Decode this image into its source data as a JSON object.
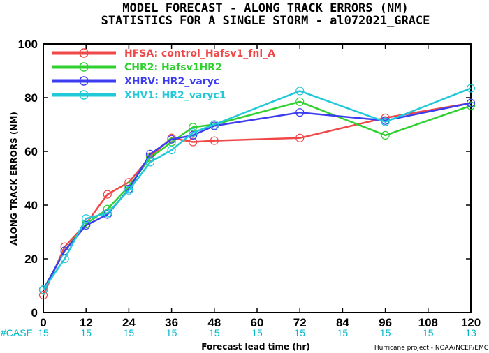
{
  "chart_data": {
    "type": "line",
    "title_line1": "MODEL FORECAST - ALONG TRACK ERRORS (NM)",
    "title_line2": "STATISTICS FOR A SINGLE STORM - al072021_GRACE",
    "xlabel": "Forecast lead time (hr)",
    "ylabel": "ALONG TRACK ERRORS (NM)",
    "xlim": [
      0,
      120
    ],
    "ylim": [
      0,
      100
    ],
    "xticks": [
      0,
      12,
      24,
      36,
      48,
      60,
      72,
      84,
      96,
      108,
      120
    ],
    "yticks": [
      0,
      20,
      40,
      60,
      80,
      100
    ],
    "legend_position": "top-left",
    "series": [
      {
        "name": "HFSA: control_Hafsv1_fnl_A",
        "color": "#f04848",
        "x": [
          0,
          6,
          12,
          18,
          24,
          30,
          36,
          42,
          48,
          72,
          96,
          120
        ],
        "y": [
          6.5,
          24.5,
          33,
          44,
          48.5,
          58,
          65,
          63.5,
          64,
          65,
          72.5,
          78
        ]
      },
      {
        "name": "CHR2: Hafsv1HR2",
        "color": "#30d030",
        "x": [
          0,
          6,
          12,
          18,
          24,
          30,
          36,
          42,
          48,
          72,
          96,
          120
        ],
        "y": [
          8.5,
          23,
          33,
          38.5,
          47,
          57.5,
          63.5,
          69,
          70,
          78.5,
          66,
          77
        ]
      },
      {
        "name": "XHRV: HR2_varyc",
        "color": "#3c3cf0",
        "x": [
          0,
          6,
          12,
          18,
          24,
          30,
          36,
          42,
          48,
          72,
          96,
          120
        ],
        "y": [
          8.5,
          23,
          32.5,
          36.5,
          46,
          59,
          64.5,
          66,
          69.5,
          74.5,
          71.5,
          78
        ]
      },
      {
        "name": "XHV1: HR2_varyc1",
        "color": "#20c8d8",
        "x": [
          0,
          6,
          12,
          18,
          24,
          30,
          36,
          42,
          48,
          72,
          96,
          120
        ],
        "y": [
          8.5,
          20,
          35,
          37,
          45.5,
          56,
          60.5,
          67,
          70,
          82.5,
          71,
          83.5
        ]
      }
    ],
    "case_label": "#CASE",
    "cases": [
      "15",
      "15",
      "15",
      "15",
      "15",
      "15",
      "15",
      "15",
      "15",
      "15",
      "13"
    ],
    "credit": "Hurricane project - NOAA/NCEP/EMC",
    "colors": {
      "case_text": "#00b8c8",
      "axis": "#000000",
      "background": "#ffffff"
    }
  }
}
